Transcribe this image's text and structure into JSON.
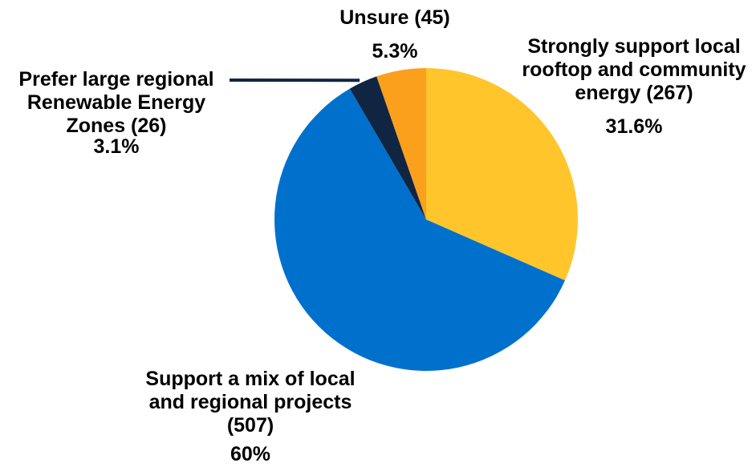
{
  "chart_data": {
    "type": "pie",
    "title": "",
    "start_angle_deg": 0,
    "direction": "clockwise",
    "legend": "none",
    "slices": [
      {
        "key": "strongly-support-local",
        "label_lines": [
          "Strongly support local",
          "rooftop and community",
          "energy (267)"
        ],
        "count": 267,
        "value": 31.6,
        "percent_label": "31.6%",
        "color": "#FFC52B"
      },
      {
        "key": "support-mix",
        "label_lines": [
          "Support a mix of local",
          "and regional projects",
          "(507)"
        ],
        "count": 507,
        "value": 60,
        "percent_label": "60%",
        "color": "#0070CD"
      },
      {
        "key": "prefer-large-regional",
        "label_lines": [
          "Prefer large regional",
          "Renewable Energy",
          "Zones (26)"
        ],
        "count": 26,
        "value": 3.1,
        "percent_label": "3.1%",
        "color": "#102542"
      },
      {
        "key": "unsure",
        "label_lines": [
          "Unsure (45)"
        ],
        "count": 45,
        "value": 5.3,
        "percent_label": "5.3%",
        "color": "#FBA01D"
      }
    ]
  }
}
